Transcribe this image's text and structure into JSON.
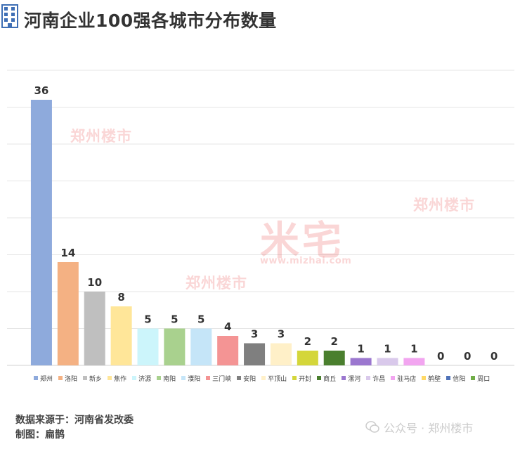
{
  "header": {
    "title": "河南企业100强各城市分布数量",
    "icon": "building-icon"
  },
  "chart_data": {
    "type": "bar",
    "categories": [
      "郑州",
      "洛阳",
      "新乡",
      "焦作",
      "济源",
      "南阳",
      "濮阳",
      "三门峡",
      "安阳",
      "平顶山",
      "开封",
      "商丘",
      "漯河",
      "许昌",
      "驻马店",
      "鹤壁",
      "信阳",
      "周口"
    ],
    "values": [
      36,
      14,
      10,
      8,
      5,
      5,
      5,
      4,
      3,
      3,
      2,
      2,
      1,
      1,
      1,
      0,
      0,
      0
    ],
    "colors": [
      "#8eaadc",
      "#f4b183",
      "#bfbfbf",
      "#ffe699",
      "#ccf5fb",
      "#a9d18e",
      "#c5e5f8",
      "#f49494",
      "#7f7f7f",
      "#fff0c8",
      "#d4d63a",
      "#4a7f2e",
      "#9b77cf",
      "#d9c9eb",
      "#f2a5f0",
      "#ffd966",
      "#4f72b8",
      "#70ad47"
    ],
    "title": "河南企业100强各城市分布数量",
    "xlabel": "",
    "ylabel": "",
    "ylim": [
      0,
      40
    ],
    "grid": true,
    "legend": "bottom"
  },
  "watermarks": {
    "brand_small": "郑州楼市",
    "brand_big": "米宅",
    "url": "www.mizhai.com"
  },
  "footer": {
    "source": "数据来源于：河南省发改委",
    "author": "制图：扁鹊"
  },
  "badge": {
    "text": "公众号 · 郑州楼市",
    "icon": "wechat-icon"
  }
}
